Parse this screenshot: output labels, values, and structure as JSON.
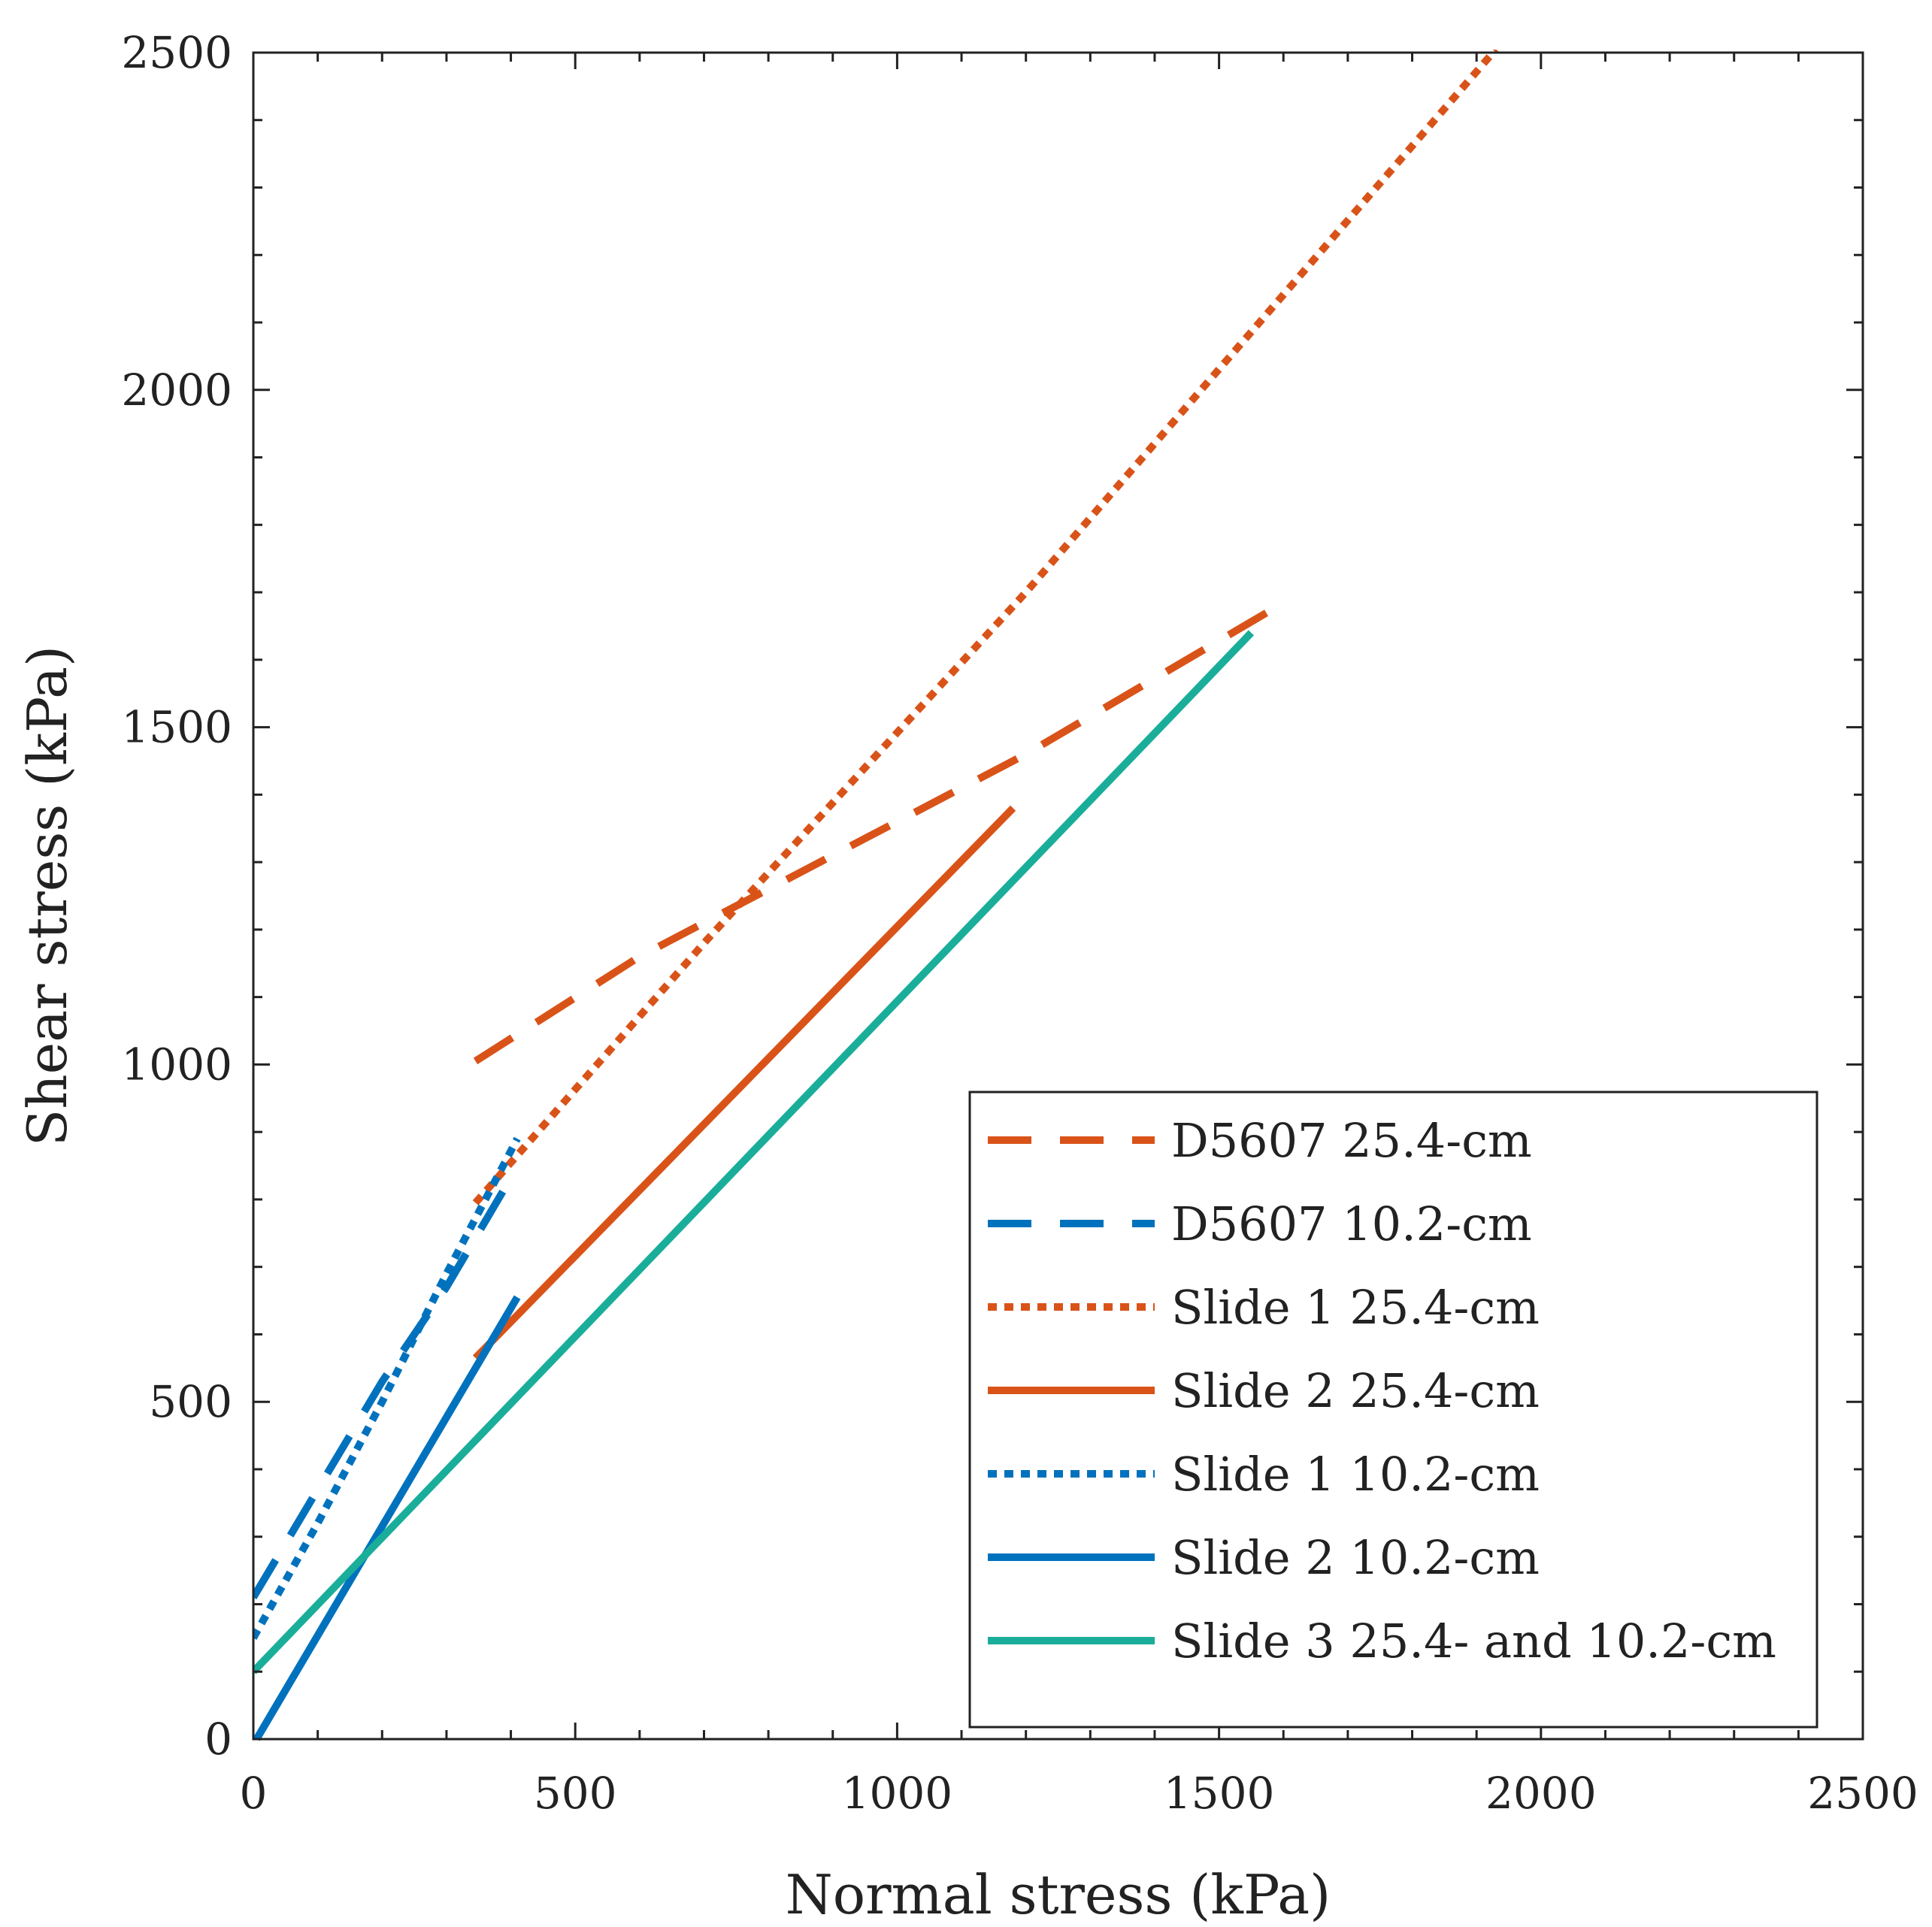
{
  "chart_data": {
    "type": "line",
    "title": "",
    "xlabel": "Normal stress (kPa)",
    "ylabel": "Shear stress (kPa)",
    "xlim": [
      0,
      2500
    ],
    "ylim": [
      0,
      2500
    ],
    "xticks": [
      0,
      500,
      1000,
      1500,
      2000,
      2500
    ],
    "yticks": [
      0,
      500,
      1000,
      1500,
      2000,
      2500
    ],
    "minor_step": 100,
    "grid": false,
    "legend_position": "lower-right",
    "series": [
      {
        "name": "D5607 25.4-cm",
        "color": "#D95319",
        "style": "dashed",
        "x": [
          345,
          600,
          900,
          1200,
          1610
        ],
        "y": [
          1005,
          1160,
          1310,
          1460,
          1690
        ]
      },
      {
        "name": "D5607 10.2-cm",
        "color": "#0072BD",
        "style": "dashed",
        "x": [
          0,
          100,
          200,
          300,
          405
        ],
        "y": [
          210,
          370,
          530,
          670,
          840
        ]
      },
      {
        "name": "Slide 1 25.4-cm",
        "color": "#D95319",
        "style": "dotted",
        "x": [
          345,
          700,
          1200,
          1930
        ],
        "y": [
          795,
          1180,
          1700,
          2505
        ]
      },
      {
        "name": "Slide 2 25.4-cm",
        "color": "#D95319",
        "style": "solid",
        "x": [
          345,
          1180
        ],
        "y": [
          565,
          1380
        ]
      },
      {
        "name": "Slide 1 10.2-cm",
        "color": "#0072BD",
        "style": "dotted",
        "x": [
          0,
          100,
          200,
          300,
          410
        ],
        "y": [
          150,
          320,
          500,
          690,
          890
        ]
      },
      {
        "name": "Slide 2 10.2-cm",
        "color": "#0072BD",
        "style": "solid",
        "x": [
          5,
          410
        ],
        "y": [
          0,
          655
        ]
      },
      {
        "name": "Slide 3 25.4- and 10.2-cm",
        "color": "#1AAE9A",
        "style": "solid",
        "x": [
          0,
          1550
        ],
        "y": [
          100,
          1640
        ]
      }
    ]
  }
}
